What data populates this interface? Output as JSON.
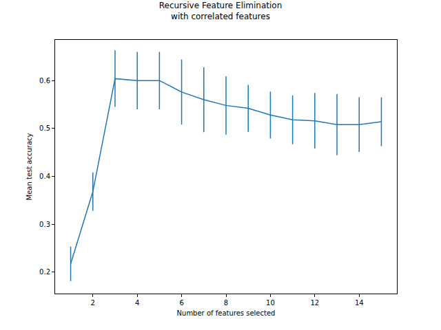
{
  "chart_data": {
    "type": "line",
    "title": "Recursive Feature Elimination\nwith correlated features",
    "x_label": "Number of features selected",
    "y_label": "Mean test accuracy",
    "x": [
      1,
      2,
      3,
      4,
      5,
      6,
      7,
      8,
      9,
      10,
      11,
      12,
      13,
      14,
      15
    ],
    "values": [
      0.217,
      0.368,
      0.604,
      0.6,
      0.6,
      0.576,
      0.56,
      0.548,
      0.542,
      0.528,
      0.518,
      0.516,
      0.508,
      0.508,
      0.514
    ],
    "errors": [
      0.036,
      0.04,
      0.059,
      0.06,
      0.06,
      0.068,
      0.068,
      0.061,
      0.049,
      0.049,
      0.051,
      0.058,
      0.064,
      0.057,
      0.051
    ],
    "color": "#1f77b4",
    "xlim": [
      0.3,
      15.7
    ],
    "xticks": [
      2,
      4,
      6,
      8,
      10,
      12,
      14
    ],
    "ylim": [
      0.155,
      0.685
    ],
    "yticks": [
      0.2,
      0.3,
      0.4,
      0.5,
      0.6
    ],
    "grid": false
  }
}
